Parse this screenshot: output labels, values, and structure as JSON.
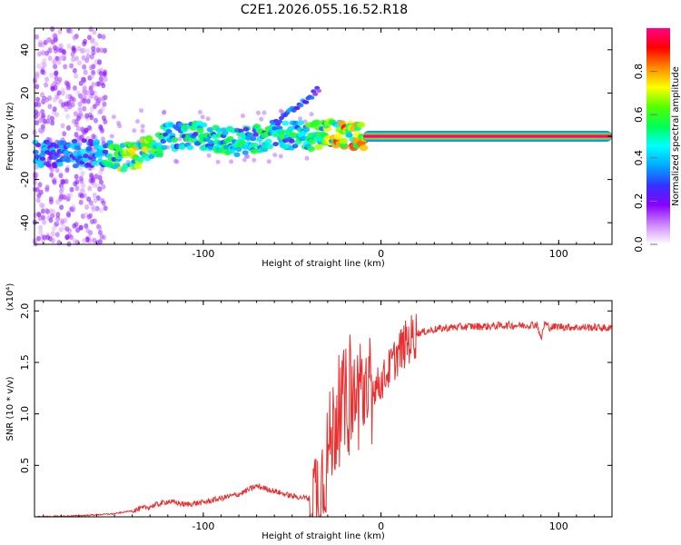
{
  "title": "C2E1.2026.055.16.52.R18",
  "chart_data": [
    {
      "type": "heatmap",
      "xlabel": "Height of straight line (km)",
      "ylabel": "Frequency (Hz)",
      "xlim": [
        -195,
        130
      ],
      "ylim": [
        -50,
        50
      ],
      "xticks": [
        -100,
        0,
        100
      ],
      "xtick_labels": [
        "-100",
        "0",
        "100"
      ],
      "yticks": [
        -40,
        -20,
        0,
        20,
        40
      ],
      "ytick_labels": [
        "-40",
        "-20",
        "0",
        "20",
        "40"
      ],
      "colorbar": {
        "label": "Normalized spectral amplitude",
        "range": [
          0,
          1
        ],
        "ticks": [
          0,
          0.2,
          0.4,
          0.6,
          0.8
        ],
        "tick_labels": [
          "0.0",
          "0.2",
          "0.4",
          "0.6",
          "0.8"
        ],
        "colors": [
          "#ffffff",
          "#cc88ff",
          "#8800ff",
          "#3333ff",
          "#00aaff",
          "#00ffff",
          "#00ff55",
          "#55ff00",
          "#ffff00",
          "#ff8800",
          "#ff0000",
          "#ff0088"
        ]
      },
      "features": [
        {
          "name": "scattered noise band",
          "x_range": [
            -195,
            -155
          ],
          "freq_range": [
            -50,
            50
          ],
          "amplitude": 0.1
        },
        {
          "name": "main signal trace",
          "x": [
            -195,
            -160,
            -140,
            -120,
            -100,
            -80,
            -60,
            -40,
            -30,
            -20,
            -10,
            0,
            20,
            60,
            100,
            130
          ],
          "freq": [
            -8,
            -8,
            -10,
            0,
            0,
            -3,
            1,
            0,
            2,
            0,
            0,
            0,
            0,
            0,
            0,
            0
          ],
          "amplitude": [
            0.35,
            0.4,
            0.75,
            0.45,
            0.5,
            0.5,
            0.5,
            0.55,
            0.65,
            0.8,
            0.95,
            1.0,
            1.0,
            1.0,
            1.0,
            1.0
          ]
        },
        {
          "name": "upper branch",
          "x": [
            -60,
            -50,
            -40,
            -35
          ],
          "freq": [
            5,
            12,
            18,
            22
          ],
          "amplitude": [
            0.3,
            0.35,
            0.3,
            0.2
          ]
        }
      ]
    },
    {
      "type": "line",
      "xlabel": "Height of straight line (km)",
      "ylabel": "SNR (10 * v/v)",
      "yscale_label": "(x10⁴)",
      "xlim": [
        -195,
        130
      ],
      "ylim": [
        0,
        2.1
      ],
      "xticks": [
        -100,
        0,
        100
      ],
      "xtick_labels": [
        "-100",
        "0",
        "100"
      ],
      "yticks": [
        0.5,
        1.0,
        1.5,
        2.0
      ],
      "ytick_labels": [
        "0.5",
        "1.0",
        "1.5",
        "2.0"
      ],
      "color": "#e83030",
      "series": [
        {
          "name": "SNR",
          "x": [
            -195,
            -170,
            -150,
            -140,
            -130,
            -120,
            -110,
            -100,
            -90,
            -80,
            -70,
            -60,
            -50,
            -40,
            -35,
            -30,
            -25,
            -20,
            -15,
            -10,
            -5,
            0,
            5,
            10,
            15,
            20,
            30,
            40,
            50,
            60,
            70,
            80,
            88,
            90,
            92,
            95,
            100,
            110,
            120,
            130
          ],
          "y": [
            0.0,
            0.01,
            0.03,
            0.06,
            0.1,
            0.15,
            0.12,
            0.14,
            0.18,
            0.22,
            0.3,
            0.25,
            0.2,
            0.18,
            0.25,
            0.6,
            1.0,
            1.1,
            1.15,
            1.2,
            1.25,
            1.3,
            1.45,
            1.6,
            1.7,
            1.78,
            1.82,
            1.84,
            1.85,
            1.85,
            1.86,
            1.86,
            1.87,
            1.72,
            1.88,
            1.84,
            1.85,
            1.84,
            1.84,
            1.83
          ]
        }
      ]
    }
  ]
}
